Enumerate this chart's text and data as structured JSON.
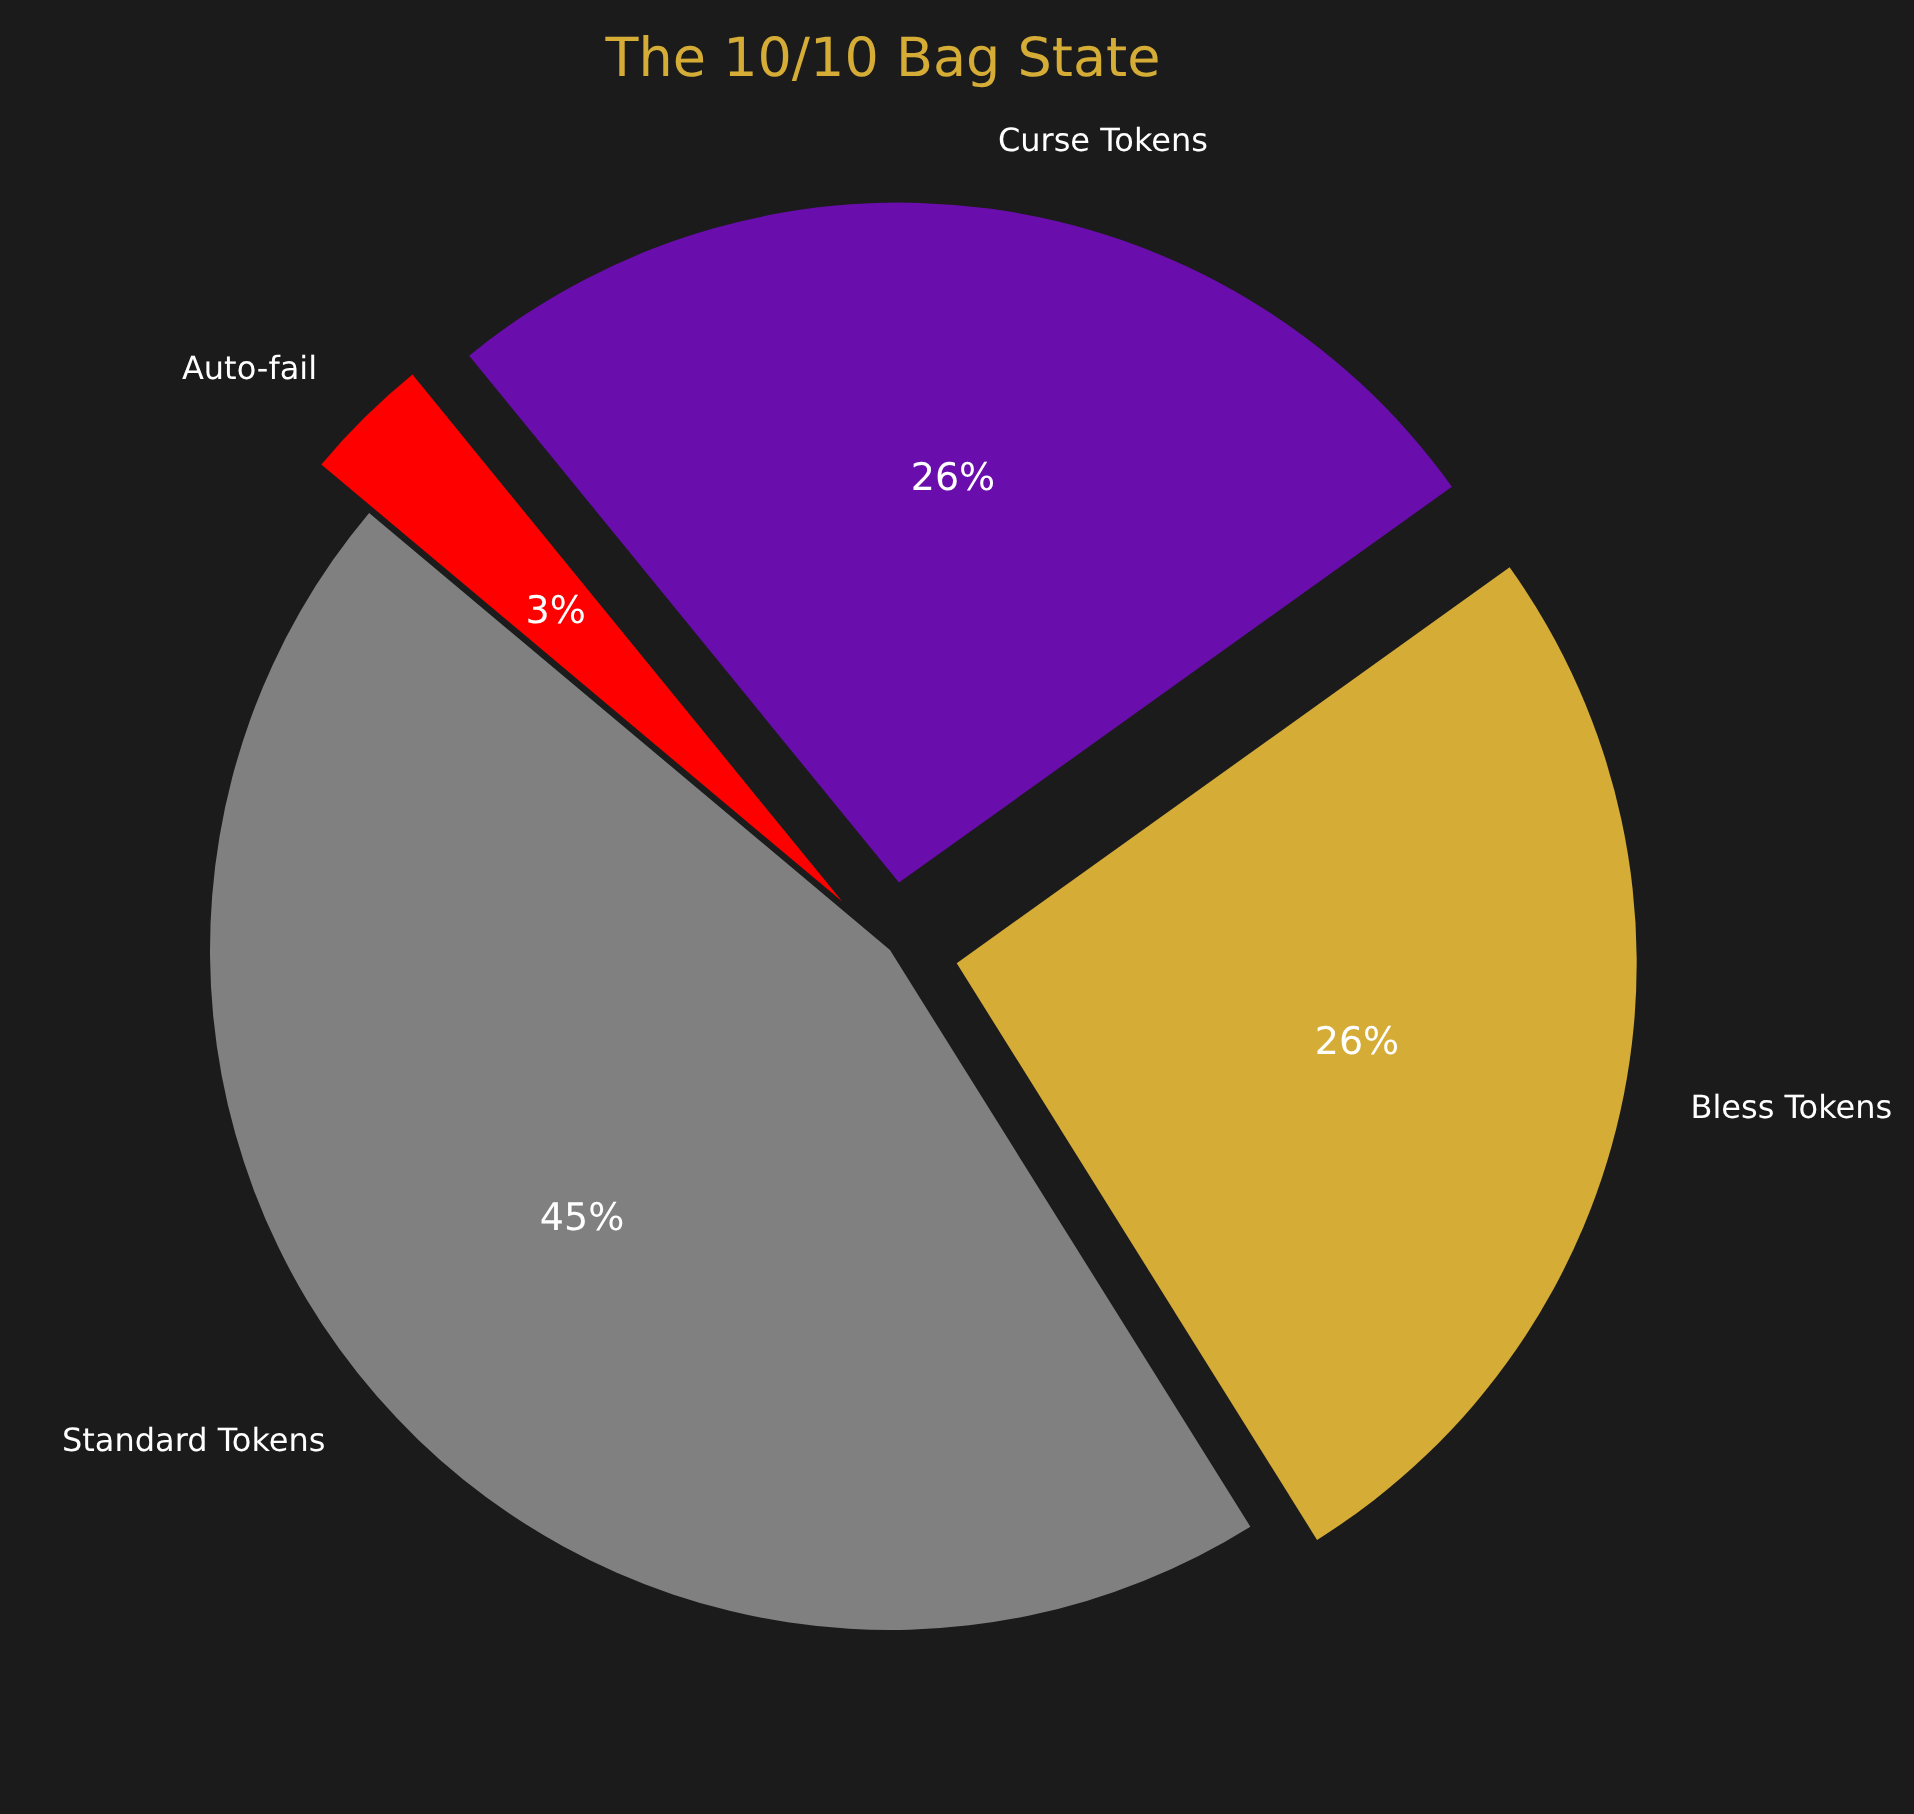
{
  "chart_data": {
    "type": "pie",
    "title": "The 10/10 Bag State",
    "categories": [
      "Standard Tokens",
      "Bless Tokens",
      "Curse Tokens",
      "Auto-fail"
    ],
    "values": [
      45,
      26,
      26,
      3
    ],
    "value_labels": [
      "45%",
      "26%",
      "26%",
      "3%"
    ],
    "colors": [
      "#808080",
      "#d4ac36",
      "#6a0dad",
      "#ff0000"
    ]
  }
}
